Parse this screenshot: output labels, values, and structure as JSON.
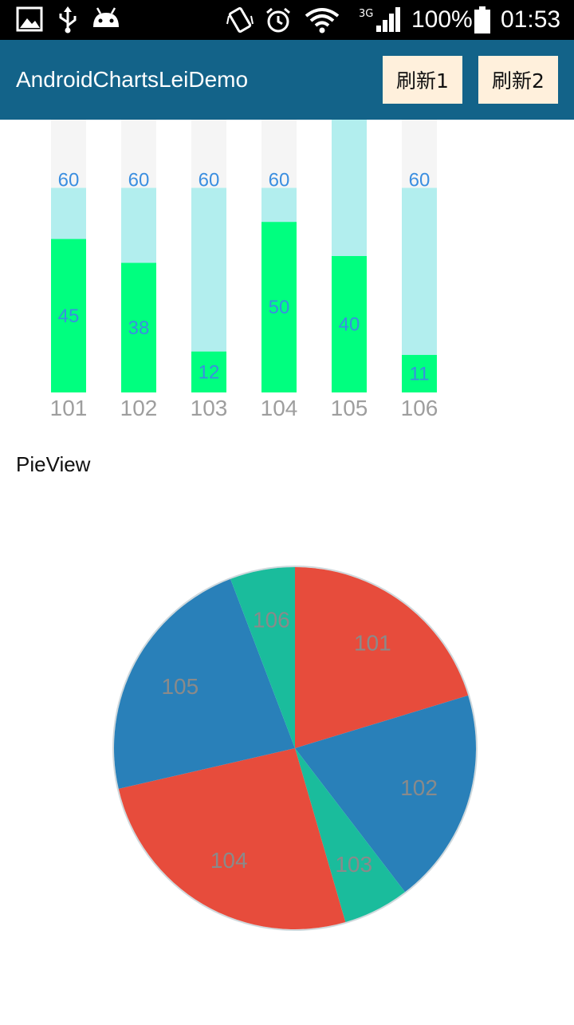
{
  "status_bar": {
    "network_label": "3G",
    "battery_text": "100%",
    "clock": "01:53",
    "icons": [
      "image-icon",
      "usb-icon",
      "android-icon",
      "vibrate-icon",
      "alarm-icon",
      "wifi-icon",
      "signal-icon",
      "battery-icon"
    ]
  },
  "app_bar": {
    "title": "AndroidChartsLeiDemo",
    "background": "#136389",
    "refresh1_label": "刷新1",
    "refresh2_label": "刷新2"
  },
  "bar_chart": {
    "chart_data": {
      "type": "bar",
      "categories": [
        "101",
        "102",
        "103",
        "104",
        "105",
        "106"
      ],
      "series": [
        {
          "values": [
            60,
            60,
            60,
            60,
            80,
            60
          ],
          "color": "#b2eeee"
        },
        {
          "values": [
            45,
            38,
            12,
            50,
            40,
            11
          ],
          "color": "#00ff7f"
        }
      ],
      "target_labels": [
        "60",
        "60",
        "60",
        "60",
        "",
        "60"
      ],
      "value_labels": [
        "45",
        "38",
        "12",
        "50",
        "40",
        "11"
      ],
      "ylim": [
        0,
        80
      ],
      "track_color": "#f5f5f5",
      "label_color": "#3a8ee0",
      "tick_color": "#9e9e9e"
    }
  },
  "pie_section": {
    "label": "PieView"
  },
  "pie_chart": {
    "chart_data": {
      "type": "pie",
      "labels": [
        "101",
        "102",
        "103",
        "104",
        "105",
        "106"
      ],
      "values": [
        20.3,
        19.3,
        5.9,
        25.9,
        22.8,
        5.8
      ],
      "colors": [
        "#e74c3c",
        "#2980b9",
        "#1abc9c",
        "#e74c3c",
        "#2980b9",
        "#1abc9c"
      ],
      "label_color": "#8a8a8a"
    }
  }
}
